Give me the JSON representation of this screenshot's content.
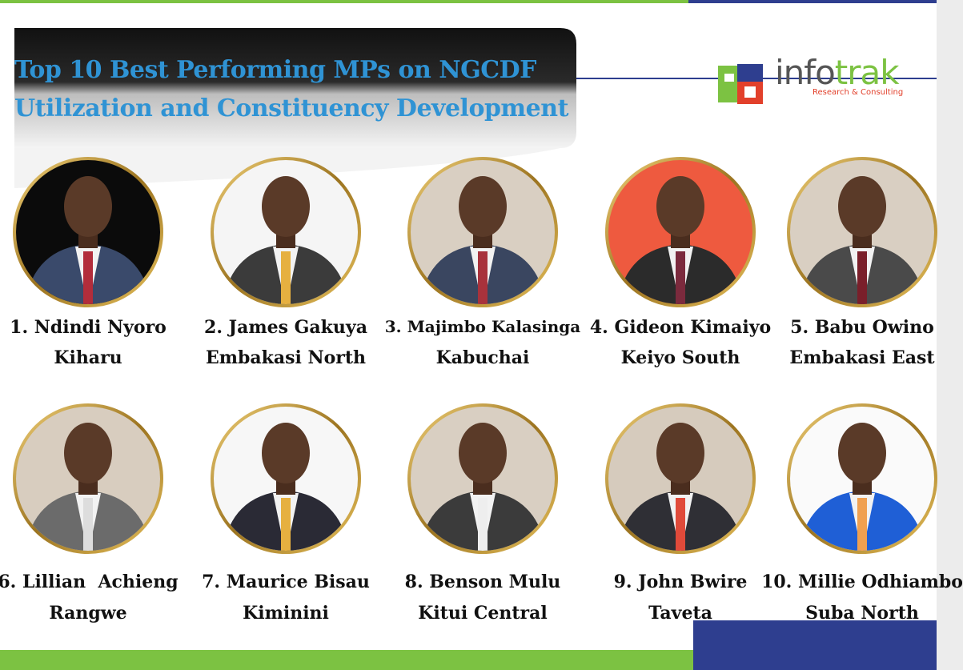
{
  "header": {
    "title_lines": [
      "Top 10 Best Performing MPs on NGCDF",
      "Utilization and Constituency Development"
    ]
  },
  "logo": {
    "name_part1": "info",
    "name_part2": "trak",
    "tagline": "Research & Consulting"
  },
  "mps": [
    {
      "name": "1. Ndindi Nyoro",
      "constituency": "Kiharu"
    },
    {
      "name": "2. James Gakuya",
      "constituency": "Embakasi North"
    },
    {
      "name": "3. Majimbo Kalasinga",
      "constituency": "Kabuchai"
    },
    {
      "name": "4. Gideon Kimaiyo",
      "constituency": "Keiyo South"
    },
    {
      "name": "5. Babu Owino",
      "constituency": "Embakasi East"
    },
    {
      "name": "6. Lillian  Achieng",
      "constituency": "Rangwe"
    },
    {
      "name": "7. Maurice Bisau",
      "constituency": "Kiminini"
    },
    {
      "name": "8. Benson Mulu",
      "constituency": "Kitui Central"
    },
    {
      "name": "9. John Bwire",
      "constituency": "Taveta"
    },
    {
      "name": "10. Millie Odhiambo",
      "constituency": "Suba North"
    }
  ]
}
